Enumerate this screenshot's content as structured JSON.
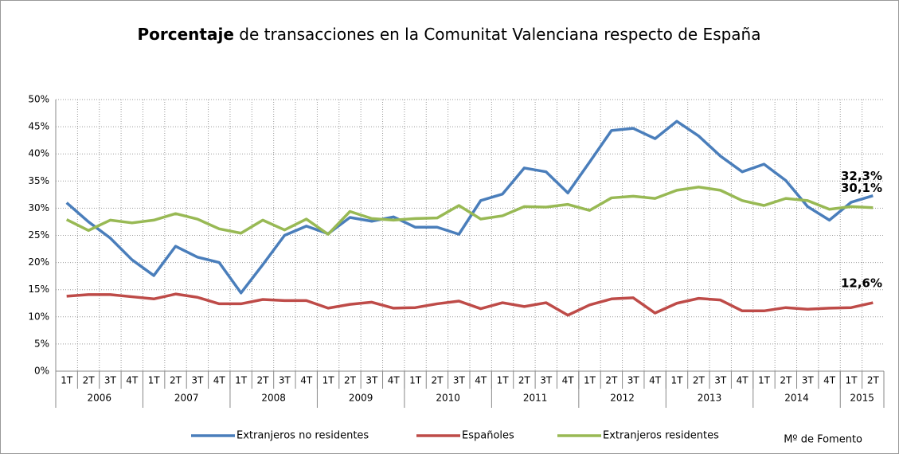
{
  "chart_data": {
    "type": "line",
    "title_bold": "Porcentaje",
    "title": "de transacciones en la Comunitat Valenciana respecto de España",
    "categories": [
      "1T",
      "2T",
      "3T",
      "4T",
      "1T",
      "2T",
      "3T",
      "4T",
      "1T",
      "2T",
      "3T",
      "4T",
      "1T",
      "2T",
      "3T",
      "4T",
      "1T",
      "2T",
      "3T",
      "4T",
      "1T",
      "2T",
      "3T",
      "4T",
      "1T",
      "2T",
      "3T",
      "4T",
      "1T",
      "2T",
      "3T",
      "4T",
      "1T",
      "2T",
      "3T",
      "4T",
      "1T",
      "2T"
    ],
    "years": [
      "2006",
      "2007",
      "2008",
      "2009",
      "2010",
      "2011",
      "2012",
      "2013",
      "2014",
      "2015"
    ],
    "ylim": [
      0,
      50
    ],
    "yticks": [
      {
        "value": 0,
        "label": "0%"
      },
      {
        "value": 5,
        "label": "5%"
      },
      {
        "value": 10,
        "label": "10%"
      },
      {
        "value": 15,
        "label": "15%"
      },
      {
        "value": 20,
        "label": "20%"
      },
      {
        "value": 25,
        "label": "25%"
      },
      {
        "value": 30,
        "label": "30%"
      },
      {
        "value": 35,
        "label": "35%"
      },
      {
        "value": 40,
        "label": "40%"
      },
      {
        "value": 45,
        "label": "45%"
      },
      {
        "value": 50,
        "label": "50%"
      }
    ],
    "grid": true,
    "series": [
      {
        "name": "Extranjeros no residentes",
        "color": "#4a7ebb",
        "label_color": "#2e5f96",
        "end_label": "32,3%",
        "values": [
          31,
          27.5,
          24.5,
          20.5,
          17.6,
          23,
          21,
          20,
          14.4,
          19.6,
          25,
          26.7,
          25.3,
          28.3,
          27.6,
          28.4,
          26.5,
          26.5,
          25.2,
          31.4,
          32.6,
          37.4,
          36.7,
          32.8,
          38.5,
          44.3,
          44.7,
          42.8,
          46,
          43.3,
          39.6,
          36.7,
          38.1,
          35.1,
          30.3,
          27.8,
          31.1,
          32.3
        ]
      },
      {
        "name": "Españoles",
        "color": "#be4b48",
        "label_color": "#c0504d",
        "end_label": "12,6%",
        "values": [
          13.8,
          14.1,
          14.1,
          13.7,
          13.3,
          14.2,
          13.6,
          12.4,
          12.4,
          13.2,
          13.0,
          13.0,
          11.6,
          12.3,
          12.7,
          11.6,
          11.7,
          12.4,
          12.9,
          11.5,
          12.6,
          11.9,
          12.6,
          10.3,
          12.2,
          13.3,
          13.5,
          10.7,
          12.5,
          13.4,
          13.1,
          11.1,
          11.1,
          11.7,
          11.4,
          11.6,
          11.7,
          12.6
        ]
      },
      {
        "name": "Extranjeros residentes",
        "color": "#98b954",
        "label_color": "#5f6b2d",
        "end_label": "30,1%",
        "values": [
          27.9,
          25.9,
          27.8,
          27.3,
          27.8,
          29,
          28,
          26.2,
          25.4,
          27.8,
          26,
          28,
          25.2,
          29.4,
          28.1,
          27.8,
          28.1,
          28.2,
          30.5,
          28,
          28.6,
          30.3,
          30.2,
          30.7,
          29.6,
          31.9,
          32.2,
          31.8,
          33.3,
          33.9,
          33.3,
          31.4,
          30.5,
          31.8,
          31.4,
          29.8,
          30.3,
          30.1
        ]
      }
    ],
    "source": "Mº de Fomento"
  }
}
